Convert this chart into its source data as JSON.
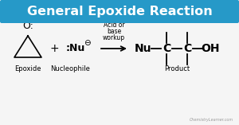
{
  "title": "General Epoxide Reaction",
  "title_bg": "#2699c8",
  "title_color": "white",
  "bg_color": "#f5f5f5",
  "label_epoxide": "Epoxide",
  "label_nucleophile": "Nucleophile",
  "label_product": "Product",
  "arrow_label_line1": "Acid or",
  "arrow_label_line2": "base",
  "arrow_label_line3": "workup",
  "watermark": "ChemistryLearner.com"
}
